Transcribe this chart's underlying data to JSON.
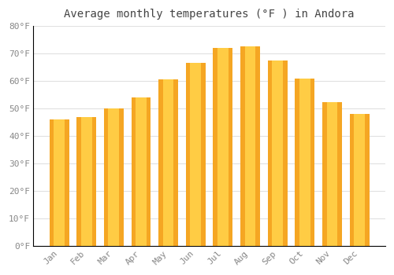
{
  "title": "Average monthly temperatures (°F ) in Andora",
  "months": [
    "Jan",
    "Feb",
    "Mar",
    "Apr",
    "May",
    "Jun",
    "Jul",
    "Aug",
    "Sep",
    "Oct",
    "Nov",
    "Dec"
  ],
  "values": [
    46,
    47,
    50,
    54,
    60.5,
    66.5,
    72,
    72.5,
    67.5,
    61,
    52.5,
    48
  ],
  "bar_color_outer": "#F5A623",
  "bar_color_inner": "#FFCC44",
  "ylim": [
    0,
    80
  ],
  "yticks": [
    0,
    10,
    20,
    30,
    40,
    50,
    60,
    70,
    80
  ],
  "ytick_labels": [
    "0°F",
    "10°F",
    "20°F",
    "30°F",
    "40°F",
    "50°F",
    "60°F",
    "70°F",
    "80°F"
  ],
  "background_color": "#FFFFFF",
  "grid_color": "#E0E0E0",
  "title_fontsize": 10,
  "tick_fontsize": 8,
  "bar_width": 0.72
}
